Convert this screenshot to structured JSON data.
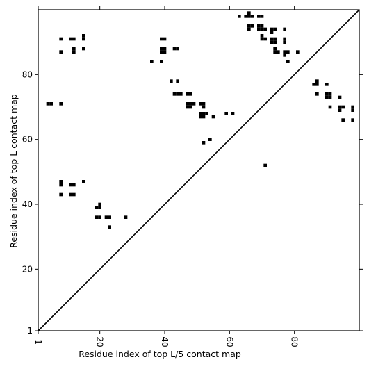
{
  "chart_data": {
    "type": "scatter",
    "xlabel": "Residue index of top L/5 contact map",
    "ylabel": "Residue index of top L contact map",
    "xlim": [
      1,
      100
    ],
    "ylim": [
      1,
      100
    ],
    "xticks": [
      1,
      20,
      40,
      60,
      80
    ],
    "yticks": [
      1,
      20,
      40,
      60,
      80
    ],
    "diagonal": true,
    "color": "#000000",
    "marker": "square",
    "points": [
      [
        4,
        71
      ],
      [
        5,
        71
      ],
      [
        8,
        71
      ],
      [
        8,
        91
      ],
      [
        11,
        91
      ],
      [
        12,
        91
      ],
      [
        15,
        91
      ],
      [
        15,
        92
      ],
      [
        8,
        87
      ],
      [
        12,
        87
      ],
      [
        12,
        88
      ],
      [
        15,
        88
      ],
      [
        8,
        47
      ],
      [
        8,
        46
      ],
      [
        8,
        43
      ],
      [
        11,
        46
      ],
      [
        12,
        46
      ],
      [
        11,
        43
      ],
      [
        12,
        43
      ],
      [
        15,
        47
      ],
      [
        19,
        39
      ],
      [
        20,
        39
      ],
      [
        20,
        40
      ],
      [
        19,
        36
      ],
      [
        20,
        36
      ],
      [
        22,
        36
      ],
      [
        23,
        36
      ],
      [
        23,
        33
      ],
      [
        28,
        36
      ],
      [
        36,
        84
      ],
      [
        39,
        84
      ],
      [
        39,
        91
      ],
      [
        40,
        91
      ],
      [
        39,
        88
      ],
      [
        40,
        88
      ],
      [
        39,
        87
      ],
      [
        40,
        87
      ],
      [
        43,
        88
      ],
      [
        44,
        88
      ],
      [
        42,
        78
      ],
      [
        44,
        78
      ],
      [
        43,
        74
      ],
      [
        44,
        74
      ],
      [
        45,
        74
      ],
      [
        47,
        74
      ],
      [
        48,
        74
      ],
      [
        47,
        71
      ],
      [
        48,
        71
      ],
      [
        49,
        71
      ],
      [
        51,
        71
      ],
      [
        52,
        71
      ],
      [
        47,
        70
      ],
      [
        48,
        70
      ],
      [
        52,
        70
      ],
      [
        51,
        68
      ],
      [
        52,
        68
      ],
      [
        53,
        68
      ],
      [
        51,
        67
      ],
      [
        52,
        67
      ],
      [
        55,
        67
      ],
      [
        59,
        68
      ],
      [
        61,
        68
      ],
      [
        52,
        59
      ],
      [
        54,
        60
      ],
      [
        71,
        52
      ],
      [
        63,
        98
      ],
      [
        65,
        98
      ],
      [
        66,
        98
      ],
      [
        67,
        98
      ],
      [
        69,
        98
      ],
      [
        70,
        98
      ],
      [
        66,
        99
      ],
      [
        66,
        95
      ],
      [
        67,
        95
      ],
      [
        69,
        95
      ],
      [
        70,
        95
      ],
      [
        66,
        94
      ],
      [
        69,
        94
      ],
      [
        70,
        94
      ],
      [
        71,
        94
      ],
      [
        70,
        92
      ],
      [
        70,
        91
      ],
      [
        71,
        91
      ],
      [
        73,
        94
      ],
      [
        74,
        94
      ],
      [
        73,
        93
      ],
      [
        73,
        91
      ],
      [
        74,
        91
      ],
      [
        73,
        90
      ],
      [
        74,
        90
      ],
      [
        77,
        94
      ],
      [
        77,
        91
      ],
      [
        77,
        90
      ],
      [
        74,
        88
      ],
      [
        74,
        87
      ],
      [
        75,
        87
      ],
      [
        77,
        87
      ],
      [
        78,
        87
      ],
      [
        77,
        86
      ],
      [
        81,
        87
      ],
      [
        78,
        84
      ],
      [
        87,
        78
      ],
      [
        86,
        77
      ],
      [
        87,
        77
      ],
      [
        90,
        77
      ],
      [
        87,
        74
      ],
      [
        90,
        74
      ],
      [
        91,
        74
      ],
      [
        90,
        73
      ],
      [
        91,
        73
      ],
      [
        94,
        73
      ],
      [
        91,
        70
      ],
      [
        94,
        70
      ],
      [
        95,
        70
      ],
      [
        98,
        70
      ],
      [
        94,
        69
      ],
      [
        98,
        69
      ],
      [
        95,
        66
      ],
      [
        98,
        66
      ]
    ]
  }
}
